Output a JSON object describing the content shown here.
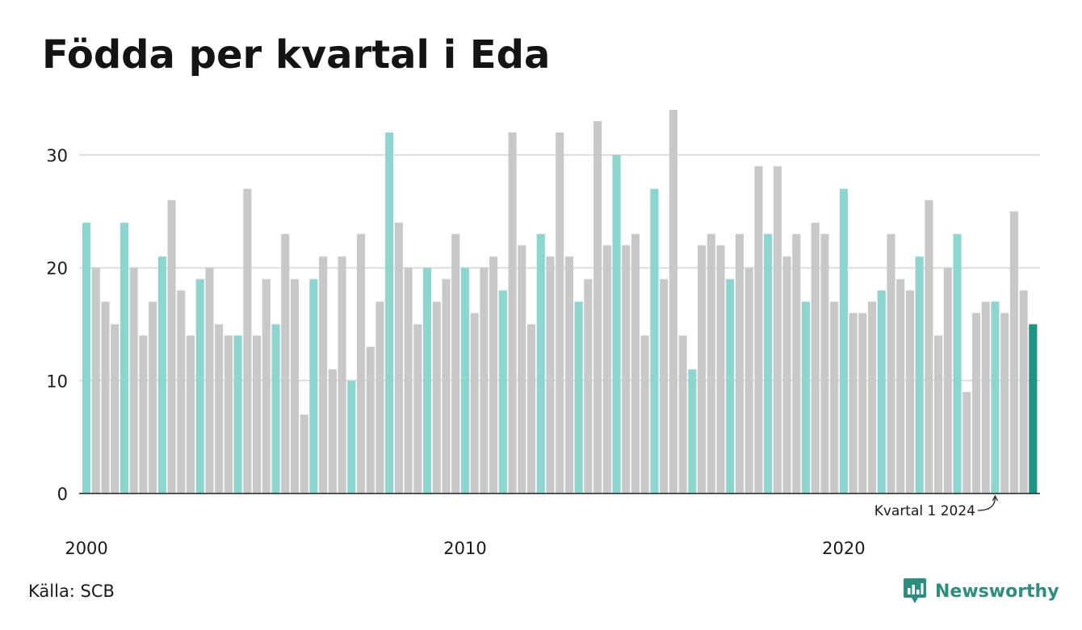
{
  "title": "Födda per kvartal i Eda",
  "source": "Källa: SCB",
  "brand": "Newsworthy",
  "colors": {
    "highlight_q1": "#8dd6cf",
    "other": "#c8c8c8",
    "latest": "#1f9485",
    "grid": "#dddddd",
    "axis": "#222222"
  },
  "chart_data": {
    "type": "bar",
    "start_year": 2000,
    "start_quarter": 1,
    "values": [
      24,
      20,
      17,
      15,
      24,
      20,
      14,
      17,
      21,
      26,
      18,
      14,
      19,
      20,
      15,
      14,
      14,
      27,
      14,
      19,
      15,
      23,
      19,
      7,
      19,
      21,
      11,
      21,
      10,
      23,
      13,
      17,
      32,
      24,
      20,
      15,
      20,
      17,
      19,
      23,
      20,
      16,
      20,
      21,
      18,
      32,
      22,
      15,
      23,
      21,
      32,
      21,
      17,
      19,
      33,
      22,
      30,
      22,
      23,
      14,
      27,
      19,
      34,
      14,
      11,
      22,
      23,
      22,
      19,
      23,
      20,
      29,
      23,
      29,
      21,
      23,
      17,
      24,
      23,
      17,
      27,
      16,
      16,
      17,
      18,
      23,
      19,
      18,
      21,
      26,
      14,
      20,
      23,
      9,
      16,
      17,
      17,
      16,
      25,
      18,
      15
    ],
    "ylim": [
      0,
      35
    ],
    "y_ticks": [
      0,
      10,
      20,
      30
    ],
    "y_tick_labels": [
      "0",
      "10",
      "20",
      "30"
    ],
    "x_ticks": [
      "2000",
      "2010",
      "2020"
    ],
    "grid": true,
    "highlight": "Kvartal 1 of each year",
    "annotation": "Kvartal 1 2024"
  }
}
